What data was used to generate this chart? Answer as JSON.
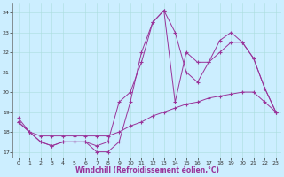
{
  "xlabel": "Windchill (Refroidissement éolien,°C)",
  "bg_color": "#cceeff",
  "line_color": "#993399",
  "xlim": [
    -0.5,
    23.5
  ],
  "ylim": [
    16.7,
    24.5
  ],
  "yticks": [
    17,
    18,
    19,
    20,
    21,
    22,
    23,
    24
  ],
  "xticks": [
    0,
    1,
    2,
    3,
    4,
    5,
    6,
    7,
    8,
    9,
    10,
    11,
    12,
    13,
    14,
    15,
    16,
    17,
    18,
    19,
    20,
    21,
    22,
    23
  ],
  "series1_x": [
    0,
    1,
    2,
    3,
    4,
    5,
    6,
    7,
    8,
    9,
    10,
    11,
    12,
    13,
    14,
    15,
    16,
    17,
    18,
    19,
    20,
    21,
    22,
    23
  ],
  "series1_y": [
    18.7,
    18.0,
    17.5,
    17.3,
    17.5,
    17.5,
    17.5,
    17.0,
    17.0,
    17.5,
    19.5,
    22.0,
    23.5,
    24.1,
    23.0,
    21.0,
    20.5,
    21.5,
    22.6,
    23.0,
    22.5,
    21.7,
    20.2,
    19.0
  ],
  "series2_x": [
    0,
    1,
    2,
    3,
    4,
    5,
    6,
    7,
    8,
    9,
    10,
    11,
    12,
    13,
    14,
    15,
    16,
    17,
    18,
    19,
    20,
    21,
    22,
    23
  ],
  "series2_y": [
    18.5,
    18.0,
    17.5,
    17.3,
    17.5,
    17.5,
    17.5,
    17.3,
    17.5,
    19.5,
    20.0,
    21.5,
    23.5,
    24.1,
    19.5,
    22.0,
    21.5,
    21.5,
    22.0,
    22.5,
    22.5,
    21.7,
    20.2,
    19.0
  ],
  "series3_x": [
    0,
    1,
    2,
    3,
    4,
    5,
    6,
    7,
    8,
    9,
    10,
    11,
    12,
    13,
    14,
    15,
    16,
    17,
    18,
    19,
    20,
    21,
    22,
    23
  ],
  "series3_y": [
    18.5,
    18.0,
    17.8,
    17.8,
    17.8,
    17.8,
    17.8,
    17.8,
    17.8,
    18.0,
    18.3,
    18.5,
    18.8,
    19.0,
    19.2,
    19.4,
    19.5,
    19.7,
    19.8,
    19.9,
    20.0,
    20.0,
    19.5,
    19.0
  ]
}
